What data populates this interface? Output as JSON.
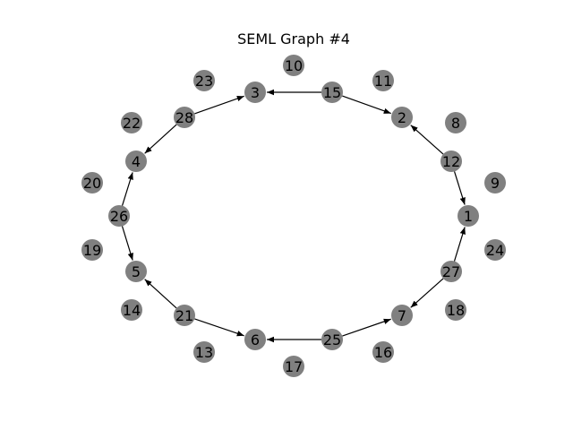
{
  "title": "SEML Graph #4",
  "node_color": "#808080",
  "edge_color": "#000000",
  "nodes": [
    "1",
    "2",
    "3",
    "4",
    "5",
    "6",
    "7",
    "8",
    "9",
    "10",
    "11",
    "12",
    "13",
    "14",
    "15",
    "16",
    "17",
    "18",
    "19",
    "20",
    "21",
    "22",
    "23",
    "24",
    "25",
    "26",
    "27",
    "28"
  ],
  "edges": [
    {
      "from": "15",
      "to": "3"
    },
    {
      "from": "15",
      "to": "2"
    },
    {
      "from": "28",
      "to": "3"
    },
    {
      "from": "28",
      "to": "4"
    },
    {
      "from": "12",
      "to": "2"
    },
    {
      "from": "12",
      "to": "1"
    },
    {
      "from": "26",
      "to": "4"
    },
    {
      "from": "26",
      "to": "5"
    },
    {
      "from": "27",
      "to": "1"
    },
    {
      "from": "27",
      "to": "7"
    },
    {
      "from": "21",
      "to": "5"
    },
    {
      "from": "21",
      "to": "6"
    },
    {
      "from": "25",
      "to": "6"
    },
    {
      "from": "25",
      "to": "7"
    }
  ]
}
